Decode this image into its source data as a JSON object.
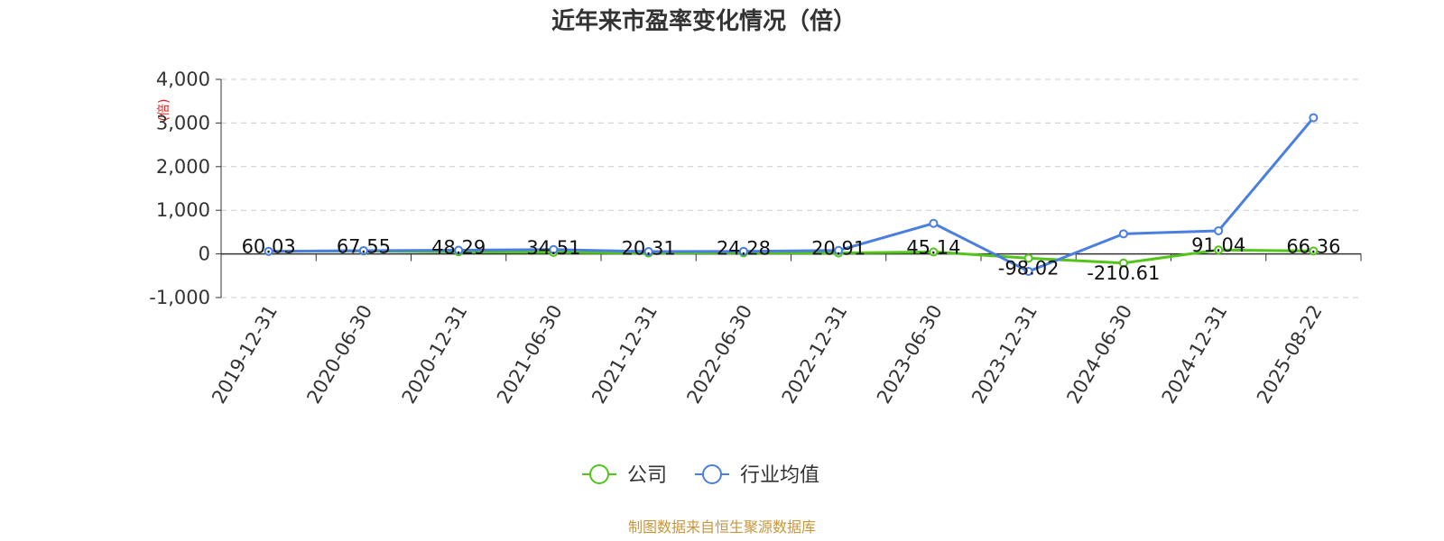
{
  "chart_data": {
    "type": "line",
    "title": "近年来市盈率变化情况（倍）",
    "ylabel": "(倍)",
    "ylim": [
      -1000,
      4000
    ],
    "yticks": [
      4000,
      3000,
      2000,
      1000,
      0,
      -1000
    ],
    "ytick_labels": [
      "4,000",
      "3,000",
      "2,000",
      "1,000",
      "0",
      "-1,000"
    ],
    "grid": true,
    "legend_position": "bottom-center",
    "categories": [
      "2019-12-31",
      "2020-06-30",
      "2020-12-31",
      "2021-06-30",
      "2021-12-31",
      "2022-06-30",
      "2022-12-31",
      "2023-06-30",
      "2023-12-31",
      "2024-06-30",
      "2024-12-31",
      "2025-08-22"
    ],
    "series": [
      {
        "name": "公司",
        "color": "#52c41a",
        "values": [
          60.03,
          67.55,
          48.29,
          34.51,
          20.31,
          24.28,
          20.91,
          45.14,
          -98.02,
          -210.61,
          91.04,
          66.36
        ],
        "labels": [
          "60.03",
          "67.55",
          "48.29",
          "34.51",
          "20.31",
          "24.28",
          "20.91",
          "45.14",
          "-98.02",
          "-210.61",
          "91.04",
          "66.36"
        ]
      },
      {
        "name": "行业均值",
        "color": "#4a7fe0",
        "values": [
          60,
          75,
          85,
          100,
          55,
          60,
          80,
          700,
          -400,
          460,
          530,
          3120
        ]
      }
    ],
    "source": "制图数据来自恒生聚源数据库"
  }
}
